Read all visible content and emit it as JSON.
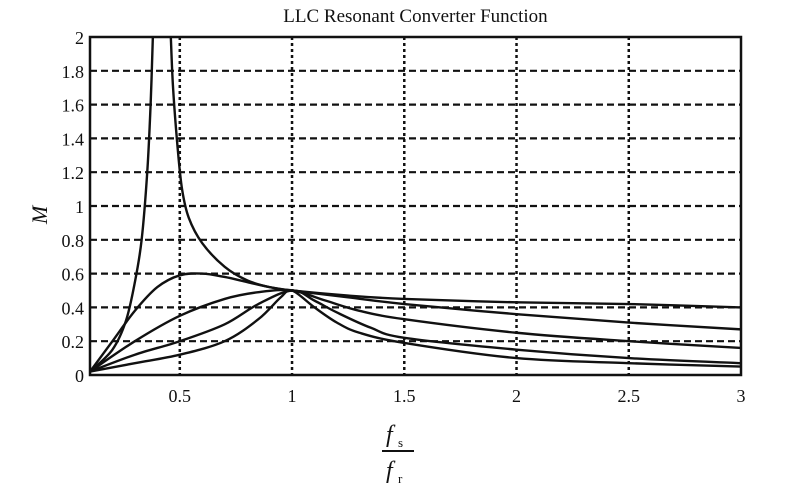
{
  "chart_data": {
    "type": "line",
    "title": "LLC Resonant Converter Function",
    "ylabel": "M",
    "xlabel": {
      "numerator": "f",
      "numerator_sub": "s",
      "denominator": "f",
      "denominator_sub": "r"
    },
    "xlim": [
      0.1,
      3
    ],
    "ylim": [
      0,
      2
    ],
    "grid": true,
    "x_ticks": [
      "0.5",
      "1",
      "1.5",
      "2",
      "2.5",
      "3"
    ],
    "x_tick_values": [
      0.5,
      1,
      1.5,
      2,
      2.5,
      3
    ],
    "y_ticks": [
      "0",
      "0.2",
      "0.4",
      "0.6",
      "0.8",
      "1",
      "1.2",
      "1.4",
      "1.6",
      "1.8",
      "2"
    ],
    "y_tick_values": [
      0,
      0.2,
      0.4,
      0.6,
      0.8,
      1,
      1.2,
      1.4,
      1.6,
      1.8,
      2
    ],
    "line_color": "#111111",
    "series": [
      {
        "segments": [
          [
            [
              0.1,
              0.02
            ],
            [
              0.2,
              0.15
            ],
            [
              0.26,
              0.32
            ],
            [
              0.3,
              0.55
            ],
            [
              0.33,
              0.8
            ],
            [
              0.355,
              1.2
            ],
            [
              0.37,
              1.6
            ],
            [
              0.38,
              2.0
            ]
          ],
          [
            [
              0.46,
              2.0
            ],
            [
              0.47,
              1.7
            ],
            [
              0.49,
              1.35
            ],
            [
              0.51,
              1.1
            ],
            [
              0.54,
              0.93
            ],
            [
              0.6,
              0.78
            ],
            [
              0.7,
              0.64
            ],
            [
              0.8,
              0.56
            ],
            [
              0.9,
              0.52
            ],
            [
              1.0,
              0.5
            ],
            [
              1.25,
              0.47
            ],
            [
              1.5,
              0.45
            ],
            [
              2.0,
              0.43
            ],
            [
              2.5,
              0.42
            ],
            [
              3.0,
              0.4
            ]
          ]
        ]
      },
      {
        "segments": [
          [
            [
              0.1,
              0.02
            ],
            [
              0.2,
              0.2
            ],
            [
              0.3,
              0.38
            ],
            [
              0.4,
              0.52
            ],
            [
              0.5,
              0.59
            ],
            [
              0.6,
              0.6
            ],
            [
              0.7,
              0.58
            ],
            [
              0.8,
              0.55
            ],
            [
              0.9,
              0.52
            ],
            [
              1.0,
              0.5
            ],
            [
              1.25,
              0.46
            ],
            [
              1.5,
              0.42
            ],
            [
              2.0,
              0.36
            ],
            [
              2.5,
              0.31
            ],
            [
              3.0,
              0.27
            ]
          ]
        ]
      },
      {
        "segments": [
          [
            [
              0.1,
              0.02
            ],
            [
              0.3,
              0.2
            ],
            [
              0.5,
              0.35
            ],
            [
              0.7,
              0.45
            ],
            [
              0.85,
              0.49
            ],
            [
              1.0,
              0.5
            ],
            [
              1.15,
              0.44
            ],
            [
              1.3,
              0.38
            ],
            [
              1.5,
              0.33
            ],
            [
              2.0,
              0.25
            ],
            [
              2.5,
              0.2
            ],
            [
              3.0,
              0.16
            ]
          ]
        ]
      },
      {
        "segments": [
          [
            [
              0.1,
              0.02
            ],
            [
              0.3,
              0.12
            ],
            [
              0.5,
              0.2
            ],
            [
              0.7,
              0.3
            ],
            [
              0.85,
              0.42
            ],
            [
              1.0,
              0.5
            ],
            [
              1.1,
              0.44
            ],
            [
              1.2,
              0.37
            ],
            [
              1.35,
              0.28
            ],
            [
              1.5,
              0.22
            ],
            [
              2.0,
              0.15
            ],
            [
              2.5,
              0.1
            ],
            [
              3.0,
              0.07
            ]
          ]
        ]
      },
      {
        "segments": [
          [
            [
              0.1,
              0.02
            ],
            [
              0.3,
              0.07
            ],
            [
              0.5,
              0.12
            ],
            [
              0.7,
              0.2
            ],
            [
              0.85,
              0.33
            ],
            [
              0.95,
              0.46
            ],
            [
              1.0,
              0.5
            ],
            [
              1.1,
              0.4
            ],
            [
              1.2,
              0.31
            ],
            [
              1.3,
              0.25
            ],
            [
              1.5,
              0.19
            ],
            [
              2.0,
              0.1
            ],
            [
              2.5,
              0.07
            ],
            [
              3.0,
              0.05
            ]
          ]
        ]
      }
    ]
  }
}
